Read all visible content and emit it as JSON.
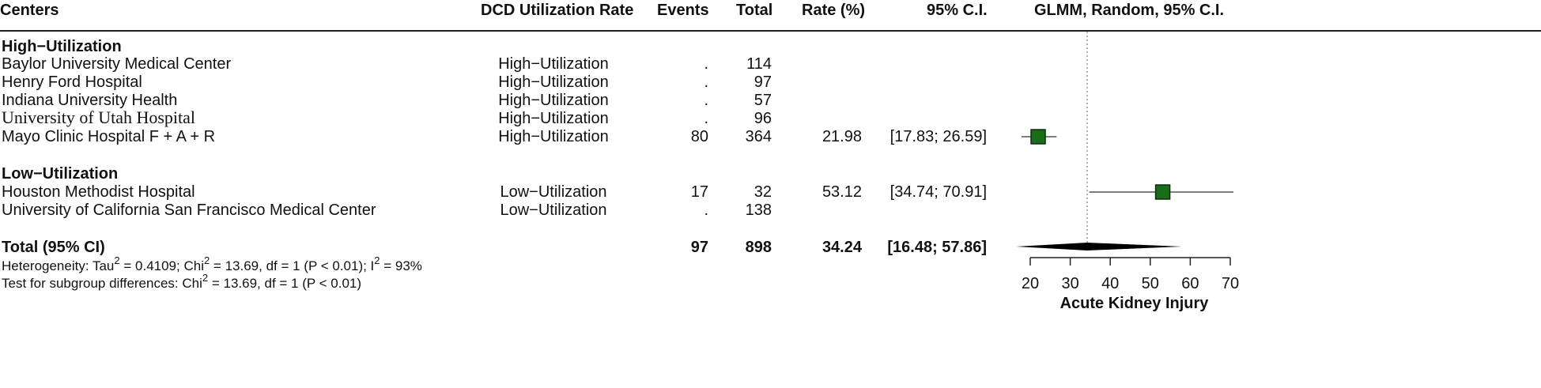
{
  "headers": {
    "centers": "Centers",
    "dcd_rate": "DCD Utilization Rate",
    "events": "Events",
    "total": "Total",
    "rate": "Rate (%)",
    "ci": "95% C.I.",
    "model": "GLMM, Random, 95% C.I."
  },
  "groups": [
    {
      "label": "High−Utilization",
      "rows": [
        {
          "center": "Baylor University Medical Center",
          "dcd": "High−Utilization",
          "events": ".",
          "total": "114",
          "rate": "",
          "ci": ""
        },
        {
          "center": "Henry Ford Hospital",
          "dcd": "High−Utilization",
          "events": ".",
          "total": "97",
          "rate": "",
          "ci": ""
        },
        {
          "center": "Indiana University Health",
          "dcd": "High−Utilization",
          "events": ".",
          "total": "57",
          "rate": "",
          "ci": ""
        },
        {
          "center": "University of Utah Hospital",
          "dcd": "High−Utilization",
          "events": ".",
          "total": "96",
          "rate": "",
          "ci": ""
        },
        {
          "center": "Mayo Clinic Hospital F + A + R",
          "dcd": "High−Utilization",
          "events": "80",
          "total": "364",
          "rate": "21.98",
          "ci": "[17.83; 26.59]"
        }
      ]
    },
    {
      "label": "Low−Utilization",
      "rows": [
        {
          "center": "Houston Methodist Hospital",
          "dcd": "Low−Utilization",
          "events": "17",
          "total": "32",
          "rate": "53.12",
          "ci": "[34.74; 70.91]"
        },
        {
          "center": "University of California San Francisco Medical Center",
          "dcd": "Low−Utilization",
          "events": ".",
          "total": "138",
          "rate": "",
          "ci": ""
        }
      ]
    }
  ],
  "total_row": {
    "label": "Total (95% CI)",
    "events": "97",
    "total": "898",
    "rate": "34.24",
    "ci": "[16.48; 57.86]"
  },
  "heterogeneity": {
    "prefix": "Heterogeneity: Tau",
    "tau_sup": "2",
    "mid1": " = 0.4109; Chi",
    "chi_sup": "2",
    "mid2": " = 13.69, df = 1 (P < 0.01); I",
    "i_sup": "2",
    "end": " = 93%"
  },
  "subgroup_test": {
    "prefix": "Test for subgroup differences: Chi",
    "chi_sup": "2",
    "end": " = 13.69, df = 1 (P < 0.01)"
  },
  "chart_data": {
    "type": "scatter",
    "title": "GLMM, Random, 95% C.I.",
    "xlabel": "Acute Kidney Injury",
    "ylabel": "",
    "xlim": [
      20,
      70
    ],
    "xticks": [
      20,
      30,
      40,
      50,
      60,
      70
    ],
    "reference_line": 34.24,
    "studies": [
      {
        "name": "Mayo Clinic Hospital F + A + R",
        "estimate": 21.98,
        "lower": 17.83,
        "upper": 26.59
      },
      {
        "name": "Houston Methodist Hospital",
        "estimate": 53.12,
        "lower": 34.74,
        "upper": 70.91
      }
    ],
    "pooled": {
      "estimate": 34.24,
      "lower": 16.48,
      "upper": 57.86
    },
    "colors": {
      "square": "#1a6b1a",
      "square_border": "#0a300a",
      "line": "#555555",
      "diamond": "#000000"
    }
  }
}
